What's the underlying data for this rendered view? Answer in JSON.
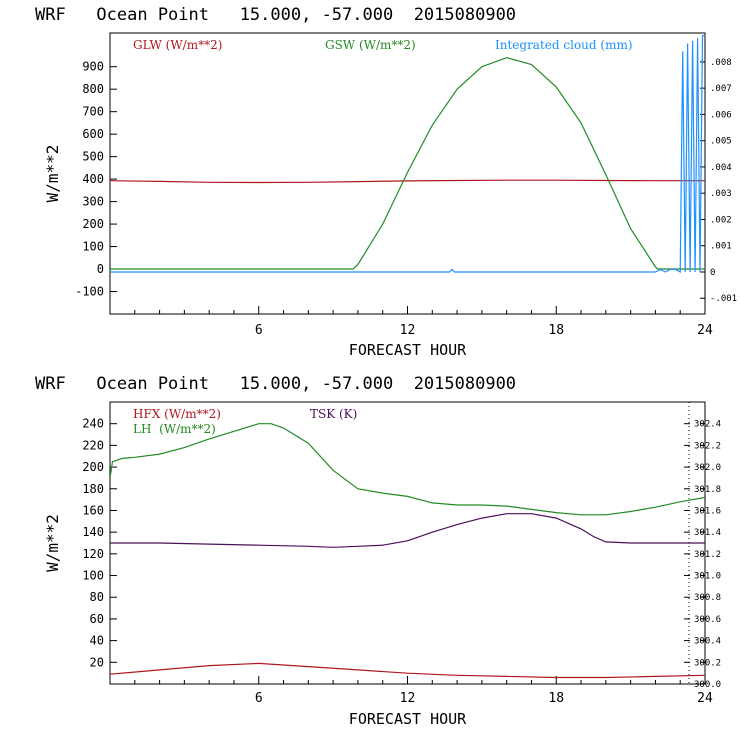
{
  "colors": {
    "red": "#b0171f",
    "green": "#228b22",
    "blue": "#1e90ff",
    "purple": "#4b0f5a",
    "axis": "#000000"
  },
  "chart_data": [
    {
      "type": "line",
      "title": "WRF   Ocean Point   15.000, -57.000  2015080900",
      "xlabel": "FORECAST HOUR",
      "ylabel": "W/m**2",
      "xlim": [
        0,
        24
      ],
      "ylim": [
        -200,
        1050
      ],
      "xticks": [
        6,
        12,
        18,
        24
      ],
      "yticks": [
        -100,
        0,
        100,
        200,
        300,
        400,
        500,
        600,
        700,
        800,
        900
      ],
      "y2lim": [
        -0.0016,
        0.0091
      ],
      "y2ticks": [
        {
          "value": -0.001,
          "label": "-.001"
        },
        {
          "value": 0,
          "label": "0"
        },
        {
          "value": 0.001,
          "label": ".001"
        },
        {
          "value": 0.002,
          "label": ".002"
        },
        {
          "value": 0.003,
          "label": ".003"
        },
        {
          "value": 0.004,
          "label": ".004"
        },
        {
          "value": 0.005,
          "label": ".005"
        },
        {
          "value": 0.006,
          "label": ".006"
        },
        {
          "value": 0.007,
          "label": ".007"
        },
        {
          "value": 0.008,
          "label": ".008"
        }
      ],
      "legend": [
        "GLW (W/m**2)",
        "GSW (W/m**2)",
        "Integrated cloud (mm)"
      ],
      "series": [
        {
          "name": "GLW (W/m**2)",
          "color": "red",
          "axis": "left",
          "x": [
            0,
            2,
            4,
            6,
            8,
            10,
            12,
            14,
            16,
            18,
            20,
            22,
            24
          ],
          "y": [
            393,
            390,
            386,
            385,
            386,
            389,
            392,
            394,
            395,
            395,
            394,
            393,
            393
          ]
        },
        {
          "name": "GSW (W/m**2)",
          "color": "green",
          "axis": "left",
          "x": [
            0,
            9.8,
            10,
            11,
            12,
            13,
            14,
            15,
            16,
            17,
            18,
            19,
            20,
            21,
            22,
            22.1,
            24
          ],
          "y": [
            0,
            0,
            20,
            200,
            430,
            640,
            800,
            900,
            940,
            910,
            810,
            650,
            420,
            180,
            10,
            0,
            0
          ]
        },
        {
          "name": "Integrated cloud (mm)",
          "color": "blue",
          "axis": "right",
          "x": [
            0,
            13.7,
            13.8,
            13.9,
            22,
            22.2,
            22.4,
            22.6,
            22.8,
            23.0,
            23.1,
            23.2,
            23.3,
            23.4,
            23.5,
            23.6,
            23.7,
            23.8,
            23.9,
            24
          ],
          "y": [
            0,
            0,
            0.0001,
            0,
            0,
            0.0001,
            0,
            0.0001,
            0.0001,
            0,
            0.0084,
            0,
            0.0087,
            0,
            0.0088,
            0,
            0.0089,
            0,
            0.009,
            0.009
          ]
        }
      ]
    },
    {
      "type": "line",
      "title": "WRF   Ocean Point   15.000, -57.000  2015080900",
      "xlabel": "FORECAST HOUR",
      "ylabel": "W/m**2",
      "xlim": [
        0,
        24
      ],
      "ylim": [
        0,
        260
      ],
      "xticks": [
        6,
        12,
        18,
        24
      ],
      "yticks": [
        20,
        40,
        60,
        80,
        100,
        120,
        140,
        160,
        180,
        200,
        220,
        240
      ],
      "y2lim": [
        300.0,
        302.6
      ],
      "y2ticks": [
        {
          "value": 300.0,
          "label": "300.0"
        },
        {
          "value": 300.2,
          "label": "300.2"
        },
        {
          "value": 300.4,
          "label": "300.4"
        },
        {
          "value": 300.6,
          "label": "300.6"
        },
        {
          "value": 300.8,
          "label": "300.8"
        },
        {
          "value": 301.0,
          "label": "301.0"
        },
        {
          "value": 301.2,
          "label": "301.2"
        },
        {
          "value": 301.4,
          "label": "301.4"
        },
        {
          "value": 301.6,
          "label": "301.6"
        },
        {
          "value": 301.8,
          "label": "301.8"
        },
        {
          "value": 302.0,
          "label": "302.0"
        },
        {
          "value": 302.2,
          "label": "302.2"
        },
        {
          "value": 302.4,
          "label": "302.4"
        }
      ],
      "legend": [
        "HFX (W/m**2)",
        "LH  (W/m**2)",
        "TSK (K)"
      ],
      "series": [
        {
          "name": "HFX (W/m**2)",
          "color": "red",
          "axis": "left",
          "x": [
            0,
            2,
            4,
            6,
            8,
            10,
            12,
            14,
            16,
            18,
            20,
            22,
            24
          ],
          "y": [
            9,
            13,
            17,
            19,
            16,
            13,
            10,
            8,
            7,
            6,
            6,
            7,
            8
          ]
        },
        {
          "name": "LH  (W/m**2)",
          "color": "green",
          "axis": "left",
          "x": [
            0,
            0.1,
            0.5,
            1,
            2,
            3,
            4,
            5,
            6,
            6.5,
            7,
            8,
            9,
            10,
            11,
            12,
            13,
            14,
            15,
            16,
            17,
            18,
            19,
            20,
            21,
            22,
            23,
            24
          ],
          "y": [
            190,
            205,
            208,
            209,
            212,
            218,
            226,
            233,
            240,
            240,
            236,
            222,
            197,
            180,
            176,
            173,
            167,
            165,
            165,
            164,
            161,
            158,
            156,
            156,
            159,
            163,
            168,
            172
          ]
        },
        {
          "name": "TSK (K)",
          "color": "purple",
          "axis": "right",
          "x": [
            0,
            2,
            4,
            6,
            8,
            9,
            10,
            11,
            12,
            13,
            14,
            15,
            16,
            17,
            18,
            19,
            19.5,
            20,
            21,
            22,
            23,
            24
          ],
          "y": [
            301.3,
            301.3,
            301.29,
            301.28,
            301.27,
            301.26,
            301.27,
            301.28,
            301.32,
            301.4,
            301.47,
            301.53,
            301.57,
            301.57,
            301.53,
            301.43,
            301.36,
            301.31,
            301.3,
            301.3,
            301.3,
            301.3
          ]
        }
      ]
    }
  ]
}
